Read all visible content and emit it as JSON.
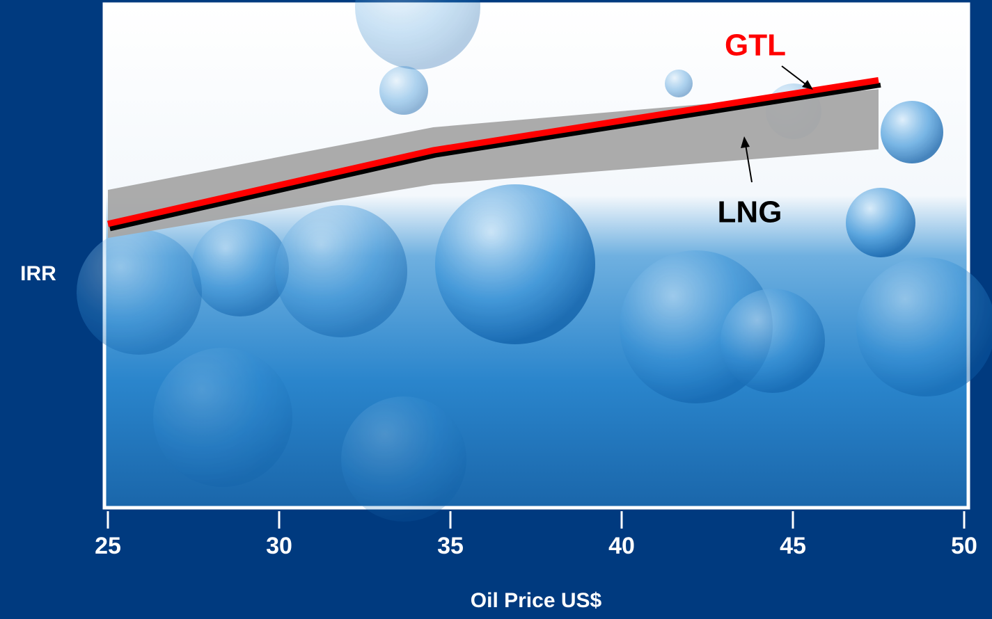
{
  "chart_data": {
    "type": "line",
    "x_label": "Oil Price US$",
    "y_label": "IRR",
    "x": [
      25,
      34.5,
      47.5
    ],
    "series": [
      {
        "name": "GTL",
        "color": "#ff0000",
        "values": [
          56.4,
          71.1,
          85.1
        ]
      },
      {
        "name": "LNG",
        "color": "#a6a6a6",
        "values": [
          63.2,
          75.7,
          83.3
        ],
        "lower": [
          53.6,
          64.3,
          71.3
        ]
      }
    ],
    "xlim": [
      25,
      50
    ],
    "xticks": [
      25,
      30,
      35,
      40,
      45,
      50
    ],
    "ylim": [
      0,
      100
    ]
  }
}
